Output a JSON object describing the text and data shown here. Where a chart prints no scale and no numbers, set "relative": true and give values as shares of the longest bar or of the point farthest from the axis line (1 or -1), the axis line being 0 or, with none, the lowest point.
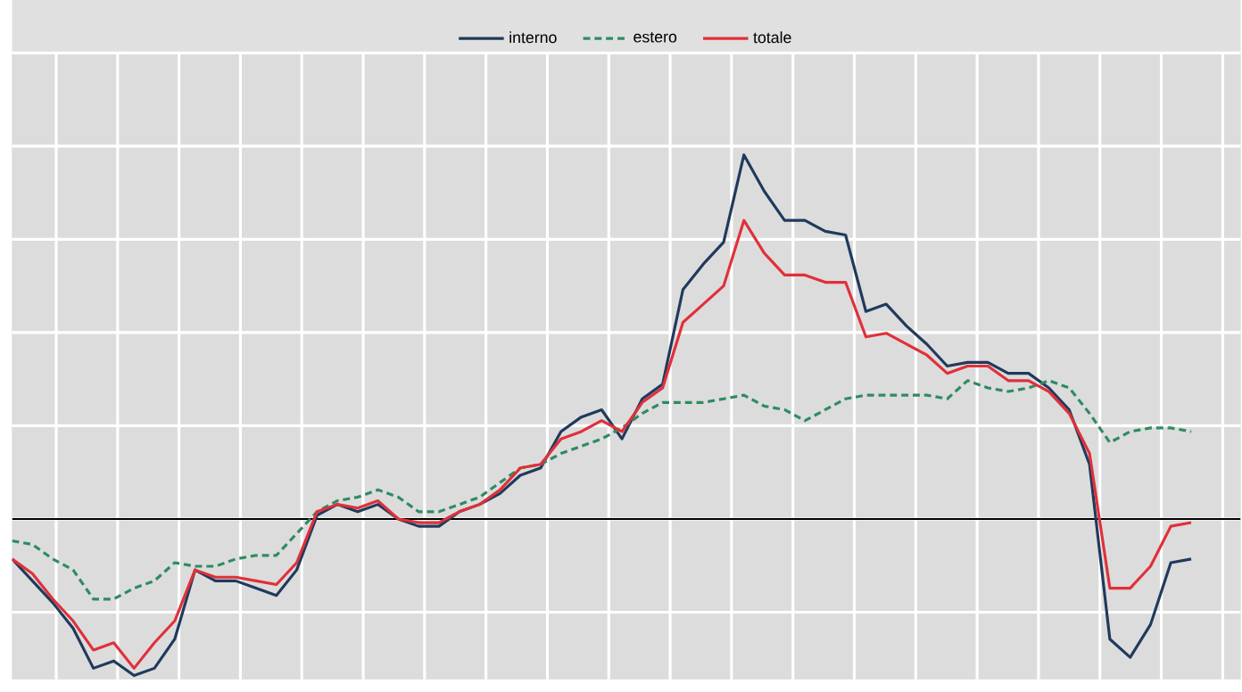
{
  "chart_data": {
    "type": "line",
    "relative": true,
    "grid": true,
    "legend": "top",
    "marker": "none",
    "categories": [
      null,
      null,
      null,
      null,
      null,
      null,
      null,
      null,
      null,
      null,
      null,
      null,
      null,
      null,
      null,
      null,
      null,
      null,
      null,
      null,
      null,
      null,
      null,
      null,
      null,
      null,
      null,
      null,
      null,
      null,
      null,
      null,
      null,
      null,
      null,
      null,
      null,
      null,
      null,
      null,
      null,
      null,
      null,
      null,
      null,
      null,
      null,
      null,
      null,
      null,
      null,
      null,
      null,
      null,
      null,
      null,
      null,
      null,
      null
    ],
    "series": [
      {
        "name": "interno",
        "color": "#1f3a5c",
        "line_style": "solid",
        "values": [
          -0.11,
          -0.17,
          -0.23,
          -0.3,
          -0.41,
          -0.39,
          -0.43,
          -0.41,
          -0.33,
          -0.14,
          -0.17,
          -0.17,
          -0.19,
          -0.21,
          -0.14,
          0.01,
          0.04,
          0.02,
          0.04,
          0.0,
          -0.02,
          -0.02,
          0.02,
          0.04,
          0.07,
          0.12,
          0.14,
          0.24,
          0.28,
          0.3,
          0.22,
          0.33,
          0.37,
          0.63,
          0.7,
          0.76,
          1.0,
          0.9,
          0.82,
          0.82,
          0.79,
          0.78,
          0.57,
          0.59,
          0.53,
          0.48,
          0.42,
          0.43,
          0.43,
          0.4,
          0.4,
          0.36,
          0.3,
          0.15,
          -0.33,
          -0.38,
          -0.29,
          -0.12,
          -0.11
        ]
      },
      {
        "name": "estero",
        "color": "#2e8b62",
        "line_style": "dashed",
        "values": [
          -0.06,
          -0.07,
          -0.11,
          -0.14,
          -0.22,
          -0.22,
          -0.19,
          -0.17,
          -0.12,
          -0.13,
          -0.13,
          -0.11,
          -0.1,
          -0.1,
          -0.04,
          0.02,
          0.05,
          0.06,
          0.08,
          0.06,
          0.02,
          0.02,
          0.04,
          0.06,
          0.1,
          0.14,
          0.15,
          0.18,
          0.2,
          0.22,
          0.25,
          0.29,
          0.32,
          0.32,
          0.32,
          0.33,
          0.34,
          0.31,
          0.3,
          0.27,
          0.3,
          0.33,
          0.34,
          0.34,
          0.34,
          0.34,
          0.33,
          0.38,
          0.36,
          0.35,
          0.36,
          0.38,
          0.36,
          0.29,
          0.21,
          0.24,
          0.25,
          0.25,
          0.24
        ]
      },
      {
        "name": "totale",
        "color": "#e0303a",
        "line_style": "solid",
        "values": [
          -0.11,
          -0.15,
          -0.22,
          -0.28,
          -0.36,
          -0.34,
          -0.41,
          -0.34,
          -0.28,
          -0.14,
          -0.16,
          -0.16,
          -0.17,
          -0.18,
          -0.12,
          0.02,
          0.04,
          0.03,
          0.05,
          0.0,
          -0.01,
          -0.01,
          0.02,
          0.04,
          0.08,
          0.14,
          0.15,
          0.22,
          0.24,
          0.27,
          0.24,
          0.32,
          0.36,
          0.54,
          0.59,
          0.64,
          0.82,
          0.73,
          0.67,
          0.67,
          0.65,
          0.65,
          0.5,
          0.51,
          0.48,
          0.45,
          0.4,
          0.42,
          0.42,
          0.38,
          0.38,
          0.35,
          0.29,
          0.18,
          -0.19,
          -0.19,
          -0.13,
          -0.02,
          -0.01
        ]
      }
    ]
  }
}
